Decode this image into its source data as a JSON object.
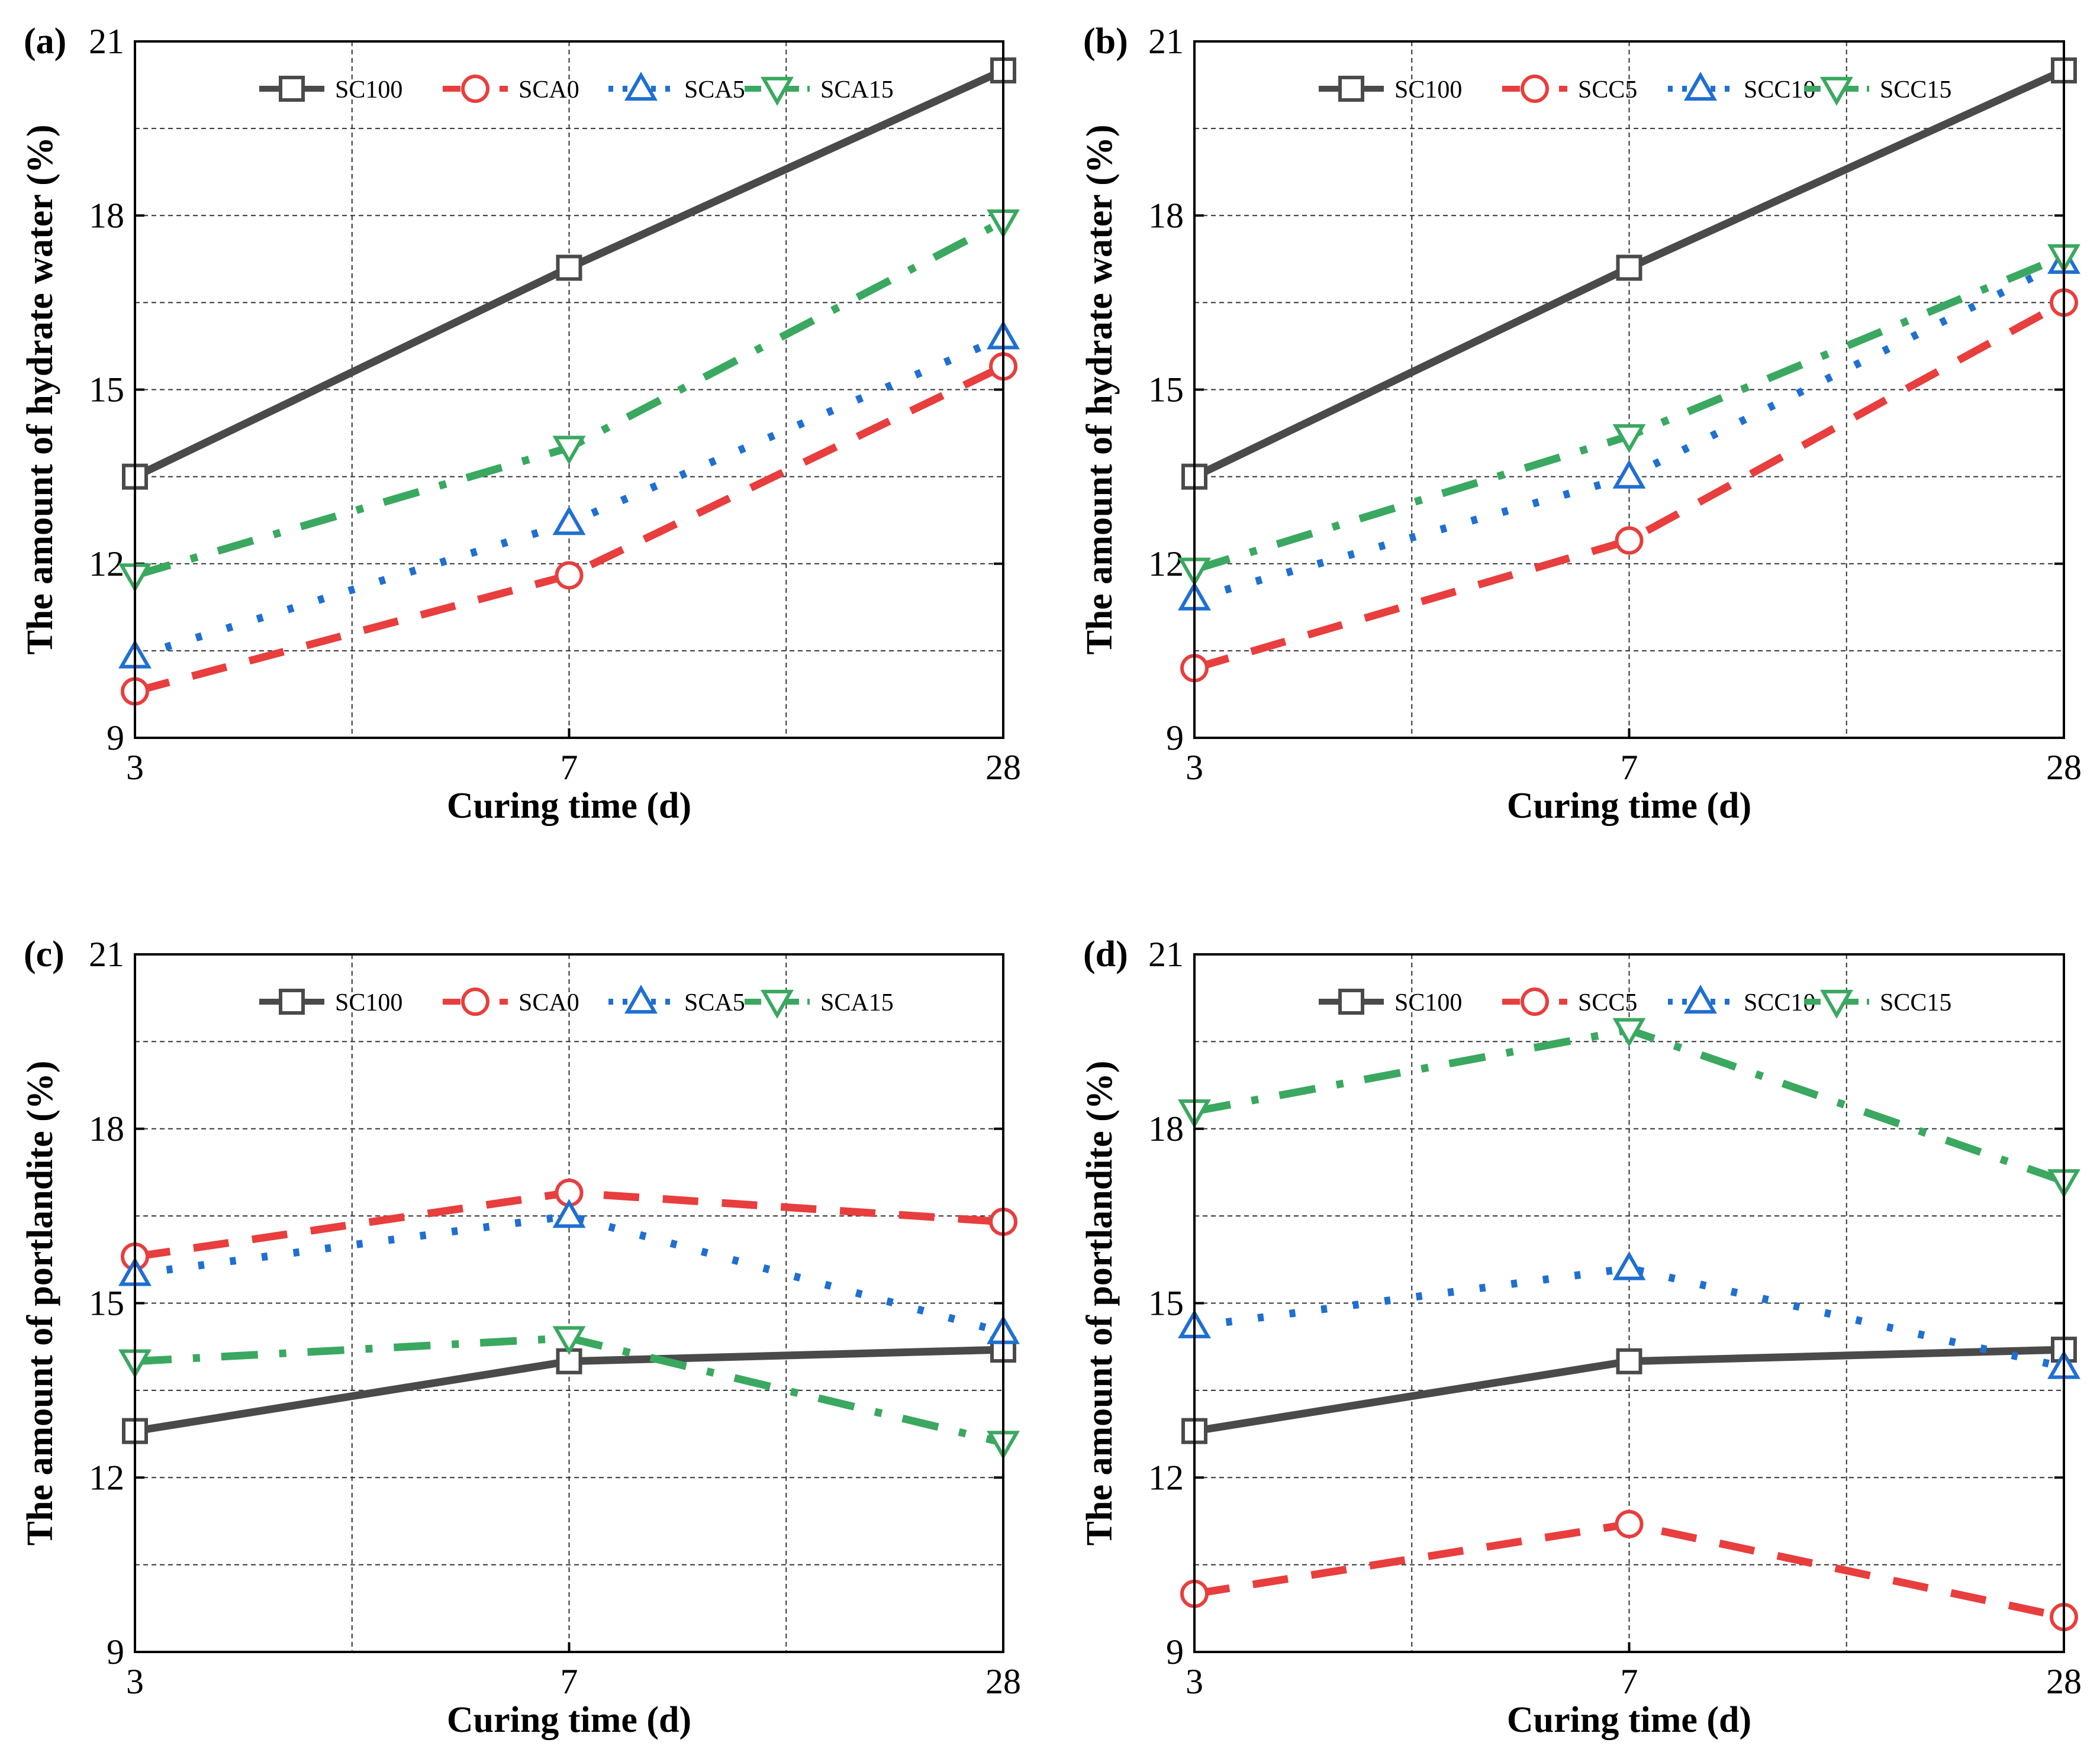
{
  "figure": {
    "panels": [
      {
        "id": "a",
        "tag": "(a)",
        "legend": [
          "SC100",
          "SCA0",
          "SCA5",
          "SCA15"
        ]
      },
      {
        "id": "b",
        "tag": "(b)",
        "legend": [
          "SC100",
          "SCC5",
          "SCC10",
          "SCC15"
        ]
      },
      {
        "id": "c",
        "tag": "(c)",
        "legend": [
          "SC100",
          "SCA0",
          "SCA5",
          "SCA15"
        ]
      },
      {
        "id": "d",
        "tag": "(d)",
        "legend": [
          "SC100",
          "SCC5",
          "SCC10",
          "SCC15"
        ]
      }
    ]
  },
  "chart_data": [
    {
      "type": "line",
      "panel": "(a)",
      "xlabel": "Curing time (d)",
      "ylabel": "The amount of hydrate water (%)",
      "categories": [
        "3",
        "7",
        "28"
      ],
      "ylim": [
        9,
        21
      ],
      "yticks": [
        9,
        12,
        15,
        18,
        21
      ],
      "grid": true,
      "legend_position": "top",
      "series": [
        {
          "name": "SC100",
          "values": [
            13.5,
            17.1,
            20.5
          ],
          "color": "#4a4a4a",
          "marker": "square",
          "dash": "solid"
        },
        {
          "name": "SCA0",
          "values": [
            9.8,
            11.8,
            15.4
          ],
          "color": "#e83e3e",
          "marker": "circle",
          "dash": "dashed"
        },
        {
          "name": "SCA5",
          "values": [
            10.4,
            12.7,
            15.9
          ],
          "color": "#1f6fd1",
          "marker": "triangle-up",
          "dash": "dotted"
        },
        {
          "name": "SCA15",
          "values": [
            11.8,
            14.0,
            17.9
          ],
          "color": "#3aa860",
          "marker": "triangle-down",
          "dash": "dashdot"
        }
      ]
    },
    {
      "type": "line",
      "panel": "(b)",
      "xlabel": "Curing time (d)",
      "ylabel": "The amount of hydrate water (%)",
      "categories": [
        "3",
        "7",
        "28"
      ],
      "ylim": [
        9,
        21
      ],
      "yticks": [
        9,
        12,
        15,
        18,
        21
      ],
      "grid": true,
      "legend_position": "top",
      "series": [
        {
          "name": "SC100",
          "values": [
            13.5,
            17.1,
            20.5
          ],
          "color": "#4a4a4a",
          "marker": "square",
          "dash": "solid"
        },
        {
          "name": "SCC5",
          "values": [
            10.2,
            12.4,
            16.5
          ],
          "color": "#e83e3e",
          "marker": "circle",
          "dash": "dashed"
        },
        {
          "name": "SCC10",
          "values": [
            11.4,
            13.5,
            17.2
          ],
          "color": "#1f6fd1",
          "marker": "triangle-up",
          "dash": "dotted"
        },
        {
          "name": "SCC15",
          "values": [
            11.9,
            14.2,
            17.3
          ],
          "color": "#3aa860",
          "marker": "triangle-down",
          "dash": "dashdot"
        }
      ]
    },
    {
      "type": "line",
      "panel": "(c)",
      "xlabel": "Curing time (d)",
      "ylabel": "The amount of portlandite (%)",
      "categories": [
        "3",
        "7",
        "28"
      ],
      "ylim": [
        9,
        21
      ],
      "yticks": [
        9,
        12,
        15,
        18,
        21
      ],
      "grid": true,
      "legend_position": "top",
      "series": [
        {
          "name": "SC100",
          "values": [
            12.8,
            14.0,
            14.2
          ],
          "color": "#4a4a4a",
          "marker": "square",
          "dash": "solid"
        },
        {
          "name": "SCA0",
          "values": [
            15.8,
            16.9,
            16.4
          ],
          "color": "#e83e3e",
          "marker": "circle",
          "dash": "dashed"
        },
        {
          "name": "SCA5",
          "values": [
            15.5,
            16.5,
            14.5
          ],
          "color": "#1f6fd1",
          "marker": "triangle-up",
          "dash": "dotted"
        },
        {
          "name": "SCA15",
          "values": [
            14.0,
            14.4,
            12.6
          ],
          "color": "#3aa860",
          "marker": "triangle-down",
          "dash": "dashdot"
        }
      ]
    },
    {
      "type": "line",
      "panel": "(d)",
      "xlabel": "Curing time (d)",
      "ylabel": "The amount of portlandite (%)",
      "categories": [
        "3",
        "7",
        "28"
      ],
      "ylim": [
        9,
        21
      ],
      "yticks": [
        9,
        12,
        15,
        18,
        21
      ],
      "grid": true,
      "legend_position": "top",
      "series": [
        {
          "name": "SC100",
          "values": [
            12.8,
            14.0,
            14.2
          ],
          "color": "#4a4a4a",
          "marker": "square",
          "dash": "solid"
        },
        {
          "name": "SCC5",
          "values": [
            10.0,
            11.2,
            9.6
          ],
          "color": "#e83e3e",
          "marker": "circle",
          "dash": "dashed"
        },
        {
          "name": "SCC10",
          "values": [
            14.6,
            15.6,
            13.9
          ],
          "color": "#1f6fd1",
          "marker": "triangle-up",
          "dash": "dotted"
        },
        {
          "name": "SCC15",
          "values": [
            18.3,
            19.7,
            17.1
          ],
          "color": "#3aa860",
          "marker": "triangle-down",
          "dash": "dashdot"
        }
      ]
    }
  ]
}
